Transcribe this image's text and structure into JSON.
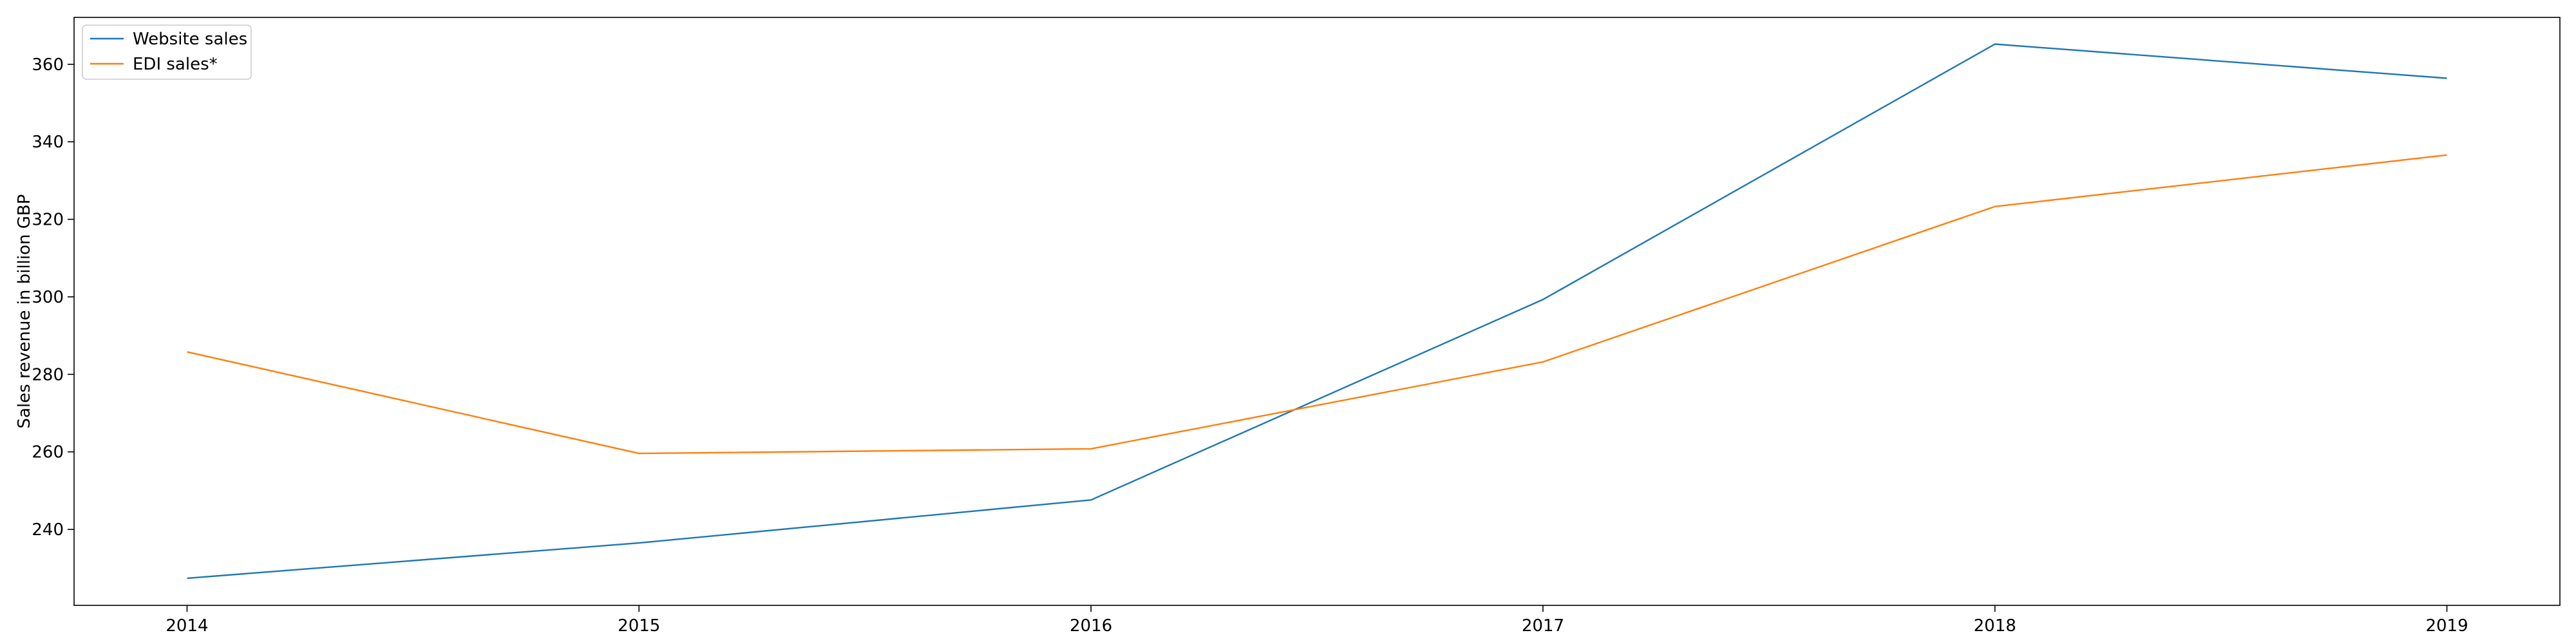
{
  "chart_data": {
    "type": "line",
    "title": "",
    "xlabel": "",
    "ylabel": "Sales revenue in billion GBP",
    "x": [
      2014,
      2015,
      2016,
      2017,
      2018,
      2019
    ],
    "x_tick_labels": [
      "2014",
      "2015",
      "2016",
      "2017",
      "2018",
      "2019"
    ],
    "xlim": [
      2013.75,
      2019.25
    ],
    "y_ticks": [
      240,
      260,
      280,
      300,
      320,
      340,
      360
    ],
    "y_tick_labels": [
      "240",
      "260",
      "280",
      "300",
      "320",
      "340",
      "360"
    ],
    "ylim": [
      220.4,
      372.1
    ],
    "grid": false,
    "legend_position": "top-left",
    "series": [
      {
        "name": "Website sales",
        "color": "#1f77b4",
        "values": [
          227.4,
          236.5,
          247.6,
          299.3,
          365.2,
          356.4
        ]
      },
      {
        "name": "EDI sales*",
        "color": "#ff7f0e",
        "values": [
          285.8,
          259.6,
          260.8,
          283.2,
          323.3,
          336.6
        ]
      }
    ]
  }
}
